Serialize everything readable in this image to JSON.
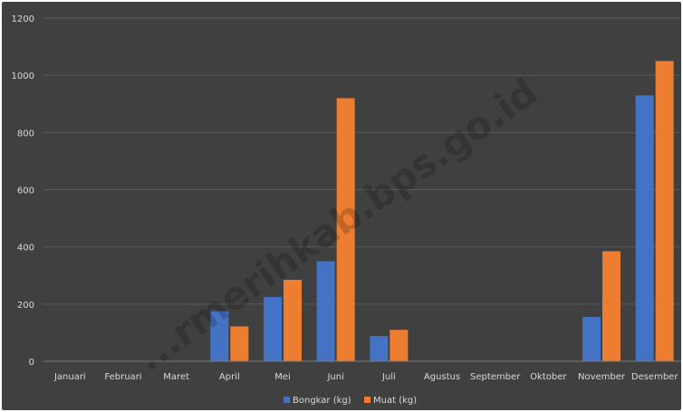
{
  "watermark": "...rmerihkab.bps.go.id",
  "chart_data": {
    "type": "bar",
    "categories": [
      "Januari",
      "Februari",
      "Maret",
      "April",
      "Mei",
      "Juni",
      "Juli",
      "Agustus",
      "September",
      "Oktober",
      "November",
      "Desember"
    ],
    "series": [
      {
        "name": "Bongkar (kg)",
        "color": "#4472c4",
        "values": [
          0,
          0,
          0,
          175,
          225,
          350,
          88,
          0,
          0,
          0,
          155,
          930
        ]
      },
      {
        "name": "Muat (kg)",
        "color": "#ed7d31",
        "values": [
          0,
          0,
          0,
          122,
          285,
          920,
          110,
          0,
          0,
          0,
          385,
          1050
        ]
      }
    ],
    "yticks": [
      "0",
      "200",
      "400",
      "600",
      "800",
      "1000",
      "1200"
    ],
    "ylim": [
      0,
      1200
    ],
    "grid": true,
    "legend": "bottom",
    "background": "#404040",
    "gridColor": "#5a5a5a"
  }
}
